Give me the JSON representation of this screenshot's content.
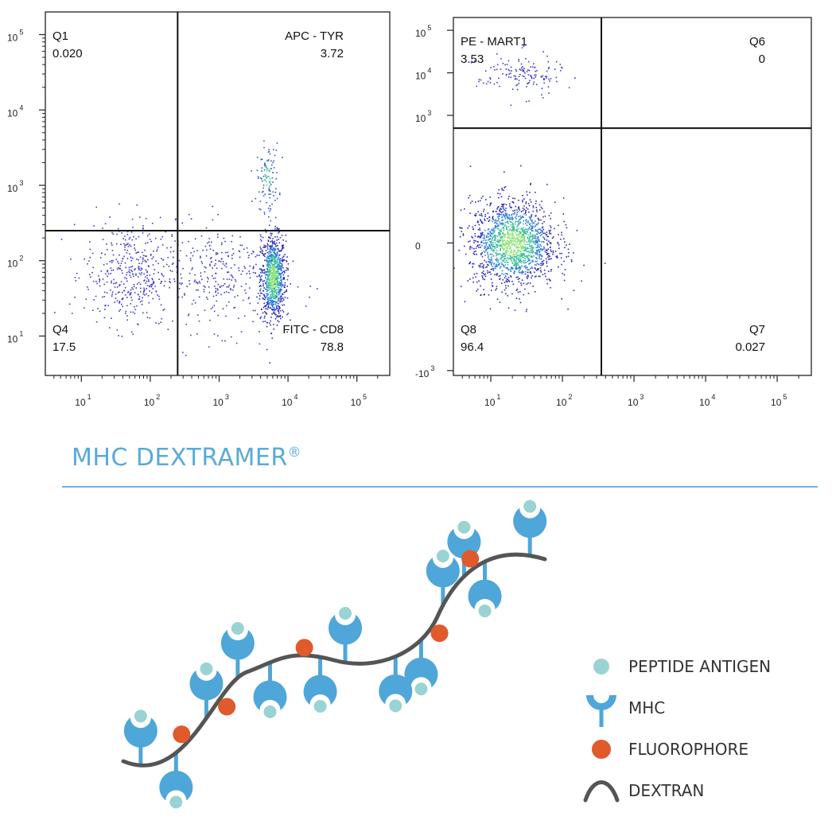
{
  "colors": {
    "mhc": "#4fa6d8",
    "peptide": "#9ad3d3",
    "fluorophore": "#e05a2b",
    "dextran": "#555555",
    "accent": "#5aaad8"
  },
  "chart_data": [
    {
      "type": "scatter",
      "title": "",
      "xlabel": "",
      "ylabel": "",
      "x_scale": "log",
      "y_scale": "log",
      "xlim": [
        3,
        300000
      ],
      "ylim": [
        3,
        200000
      ],
      "x_ticks": [
        {
          "value": 10,
          "label": "10",
          "exp": "1"
        },
        {
          "value": 100,
          "label": "10",
          "exp": "2"
        },
        {
          "value": 1000,
          "label": "10",
          "exp": "3"
        },
        {
          "value": 10000,
          "label": "10",
          "exp": "4"
        },
        {
          "value": 100000,
          "label": "10",
          "exp": "5"
        }
      ],
      "y_ticks": [
        {
          "value": 10,
          "label": "10",
          "exp": "1"
        },
        {
          "value": 100,
          "label": "10",
          "exp": "2"
        },
        {
          "value": 1000,
          "label": "10",
          "exp": "3"
        },
        {
          "value": 10000,
          "label": "10",
          "exp": "4"
        },
        {
          "value": 100000,
          "label": "10",
          "exp": "5"
        }
      ],
      "gate": {
        "x": 250,
        "y": 250
      },
      "quadrants": [
        {
          "name": "Q1",
          "value": "0.020",
          "position": "top-left"
        },
        {
          "name": "APC - TYR",
          "value": "3.72",
          "position": "top-right"
        },
        {
          "name": "Q4",
          "value": "17.5",
          "position": "bottom-left"
        },
        {
          "name": "FITC - CD8",
          "value": "78.8",
          "position": "bottom-right"
        }
      ],
      "populations": [
        {
          "x": 6000,
          "y": 60,
          "sx": 0.09,
          "sy": 0.28,
          "n": 900,
          "density": "high"
        },
        {
          "x": 5000,
          "y": 1300,
          "sx": 0.08,
          "sy": 0.22,
          "n": 110,
          "density": "medium"
        },
        {
          "x": 1200,
          "y": 60,
          "sx": 0.45,
          "sy": 0.35,
          "n": 320,
          "density": "low"
        },
        {
          "x": 50,
          "y": 70,
          "sx": 0.33,
          "sy": 0.35,
          "n": 420,
          "density": "low"
        }
      ]
    },
    {
      "type": "scatter",
      "title": "",
      "xlabel": "",
      "ylabel": "",
      "x_scale": "log",
      "y_scale": "biexponential",
      "xlim": [
        3,
        300000
      ],
      "ylim": [
        -1300,
        200000
      ],
      "x_ticks": [
        {
          "value": 10,
          "label": "10",
          "exp": "1"
        },
        {
          "value": 100,
          "label": "10",
          "exp": "2"
        },
        {
          "value": 1000,
          "label": "10",
          "exp": "3"
        },
        {
          "value": 10000,
          "label": "10",
          "exp": "4"
        },
        {
          "value": 100000,
          "label": "10",
          "exp": "5"
        }
      ],
      "y_ticks": [
        {
          "value": -1000,
          "label": "-10",
          "exp": "3"
        },
        {
          "value": 0,
          "label": "0",
          "exp": ""
        },
        {
          "value": 1000,
          "label": "10",
          "exp": "3"
        },
        {
          "value": 10000,
          "label": "10",
          "exp": "4"
        },
        {
          "value": 100000,
          "label": "10",
          "exp": "5"
        }
      ],
      "gate": {
        "x": 350,
        "y": 900
      },
      "quadrants": [
        {
          "name": "PE - MART1",
          "value": "3.53",
          "position": "top-left"
        },
        {
          "name": "Q6",
          "value": "0",
          "position": "top-right"
        },
        {
          "name": "Q8",
          "value": "96.4",
          "position": "bottom-left"
        },
        {
          "name": "Q7",
          "value": "0.027",
          "position": "bottom-right"
        }
      ],
      "populations": [
        {
          "x": 20,
          "y": 0,
          "sx": 0.3,
          "sy": 170,
          "n": 1600,
          "density": "high"
        },
        {
          "x": 25,
          "y": 9000,
          "sx": 0.3,
          "sy": 0.25,
          "n": 140,
          "density": "low"
        }
      ]
    }
  ],
  "diagram": {
    "title": "MHC DEXTRAMER",
    "title_mark": "®",
    "legend": [
      {
        "icon": "peptide-antigen-icon",
        "label": "PEPTIDE ANTIGEN"
      },
      {
        "icon": "mhc-icon",
        "label": "MHC"
      },
      {
        "icon": "fluorophore-icon",
        "label": "FLUOROPHORE"
      },
      {
        "icon": "dextran-icon",
        "label": "DEXTRAN"
      }
    ]
  }
}
